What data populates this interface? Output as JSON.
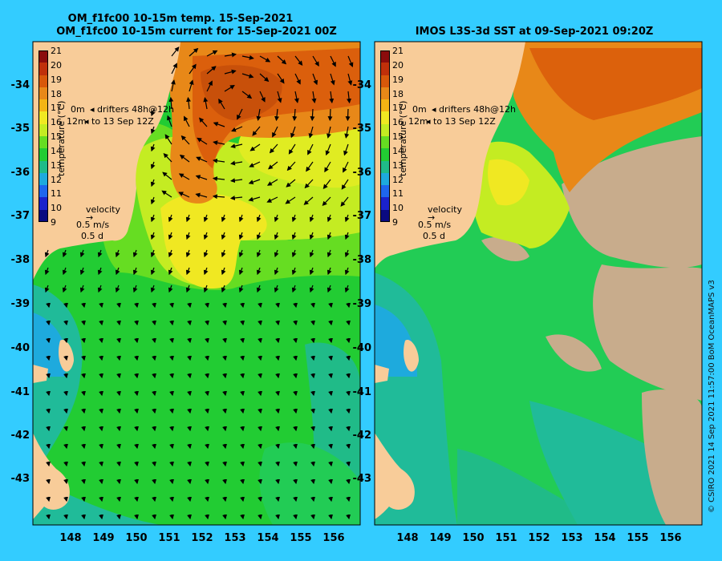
{
  "left_panel": {
    "title_line1": "OM_f1fc00 10-15m temp. 15-Sep-2021",
    "title_line2": "OM_f1fc00 10-15m current for 15-Sep-2021 00Z",
    "lat_ticks": [
      "-34",
      "-35",
      "-36",
      "-37",
      "-38",
      "-39",
      "-40",
      "-41",
      "-42",
      "-43"
    ],
    "lon_ticks": [
      "148",
      "149",
      "150",
      "151",
      "152",
      "153",
      "154",
      "155",
      "156"
    ],
    "colorbar_ticks": [
      "21",
      "20",
      "19",
      "18",
      "17",
      "16",
      "15",
      "14",
      "13",
      "12",
      "11",
      "10",
      "9"
    ],
    "colorbar_label": "temperature (°C)",
    "legend_0m": "0m",
    "legend_12m": "12m",
    "legend_drifters": "drifters 48h@12h",
    "legend_to": "to 13 Sep 12Z",
    "velocity_label": "velocity",
    "velocity_speed": "0.5 m/s",
    "velocity_days": "0.5 d"
  },
  "right_panel": {
    "title": "IMOS L3S-3d SST at 09-Sep-2021 09:20Z",
    "lat_ticks": [
      "-34",
      "-35",
      "-36",
      "-37",
      "-38",
      "-39",
      "-40",
      "-41",
      "-42",
      "-43"
    ],
    "lon_ticks": [
      "148",
      "149",
      "150",
      "151",
      "152",
      "153",
      "154",
      "155",
      "156"
    ],
    "colorbar_ticks": [
      "21",
      "20",
      "19",
      "18",
      "17",
      "16",
      "15",
      "14",
      "13",
      "12",
      "11",
      "10",
      "9"
    ],
    "colorbar_label": "temperature (°C)",
    "legend_0m": "0m",
    "legend_12m": "12m",
    "legend_drifters": "drifters 48h@12h",
    "legend_to": "to 13 Sep 12Z",
    "velocity_label": "velocity",
    "velocity_speed": "0.5 m/s",
    "velocity_days": "0.5 d"
  },
  "copyright": "© CSIRO 2021   14 Sep 2021 11:57:00 BoM OceanMAPS v3",
  "colors": {
    "background": "#33ccff",
    "land": "#f8cc99",
    "cloud": "#c8ac8c",
    "warm": "#d8780a",
    "yellow": "#f4ee22",
    "green": "#22cc22",
    "teal": "#20bb99",
    "blue": "#2288ee"
  },
  "colorbar_colors": [
    "#8b0c0c",
    "#c0300a",
    "#d8580a",
    "#e88818",
    "#f4b414",
    "#f0e822",
    "#c4ec22",
    "#66dd22",
    "#22cc33",
    "#20bb88",
    "#1eaadd",
    "#1e66ee",
    "#1a22cc",
    "#0a0a80"
  ]
}
